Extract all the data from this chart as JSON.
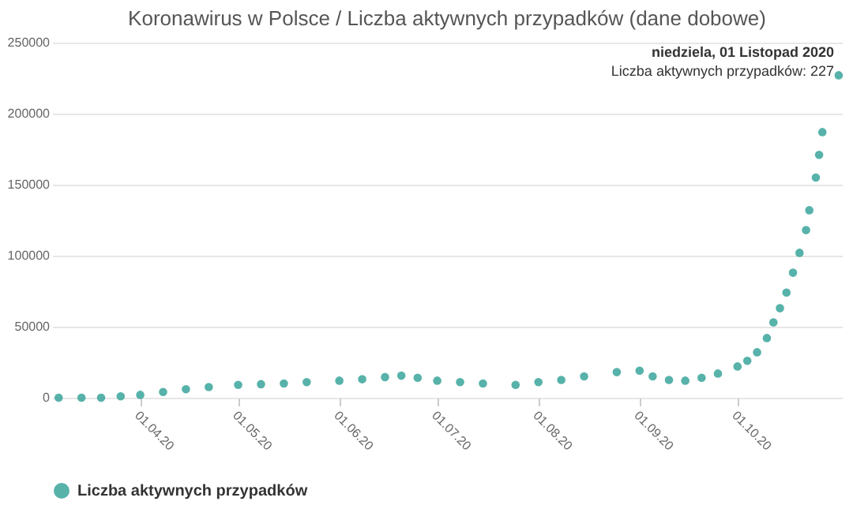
{
  "chart_data": {
    "type": "scatter",
    "title": "Koronawirus w Polsce / Liczba aktywnych przypadków (dane dobowe)",
    "x": [
      "2020-03-07",
      "2020-03-14",
      "2020-03-20",
      "2020-03-26",
      "2020-04-01",
      "2020-04-08",
      "2020-04-15",
      "2020-04-22",
      "2020-05-01",
      "2020-05-08",
      "2020-05-15",
      "2020-05-22",
      "2020-06-01",
      "2020-06-08",
      "2020-06-15",
      "2020-06-20",
      "2020-06-25",
      "2020-07-01",
      "2020-07-08",
      "2020-07-15",
      "2020-07-25",
      "2020-08-01",
      "2020-08-08",
      "2020-08-15",
      "2020-08-25",
      "2020-09-01",
      "2020-09-05",
      "2020-09-10",
      "2020-09-15",
      "2020-09-20",
      "2020-09-25",
      "2020-10-01",
      "2020-10-04",
      "2020-10-07",
      "2020-10-10",
      "2020-10-12",
      "2020-10-14",
      "2020-10-16",
      "2020-10-18",
      "2020-10-20",
      "2020-10-22",
      "2020-10-23",
      "2020-10-25",
      "2020-10-26",
      "2020-10-27",
      "2020-11-01"
    ],
    "series": [
      {
        "name": "Liczba aktywnych przypadków",
        "color": "#3aa59b",
        "values": [
          0,
          0,
          0,
          1000,
          2000,
          4000,
          6000,
          7500,
          9000,
          9500,
          10000,
          11000,
          12000,
          13000,
          14500,
          15500,
          14000,
          12000,
          11000,
          10000,
          9000,
          11000,
          12500,
          15000,
          18000,
          19000,
          15000,
          12500,
          12000,
          14000,
          17000,
          22000,
          26000,
          32000,
          42000,
          53000,
          63000,
          74000,
          88000,
          102000,
          118000,
          132000,
          155000,
          171000,
          187000,
          227000
        ]
      }
    ],
    "xlim": [
      "2020-03-05",
      "2020-11-02"
    ],
    "xticks": [
      {
        "value": "2020-04-01",
        "label": "01.04.20"
      },
      {
        "value": "2020-05-01",
        "label": "01.05.20"
      },
      {
        "value": "2020-06-01",
        "label": "01.06.20"
      },
      {
        "value": "2020-07-01",
        "label": "01.07.20"
      },
      {
        "value": "2020-08-01",
        "label": "01.08.20"
      },
      {
        "value": "2020-09-01",
        "label": "01.09.20"
      },
      {
        "value": "2020-10-01",
        "label": "01.10.20"
      }
    ],
    "ylim": [
      0,
      250000
    ],
    "yticks": [
      0,
      50000,
      100000,
      150000,
      200000,
      250000
    ],
    "grid": "y",
    "legend": "bottom",
    "marker": "circle",
    "annotations": [
      "niedziela, 01 Listopad 2020",
      "Liczba aktywnych przypadków: 227"
    ]
  }
}
